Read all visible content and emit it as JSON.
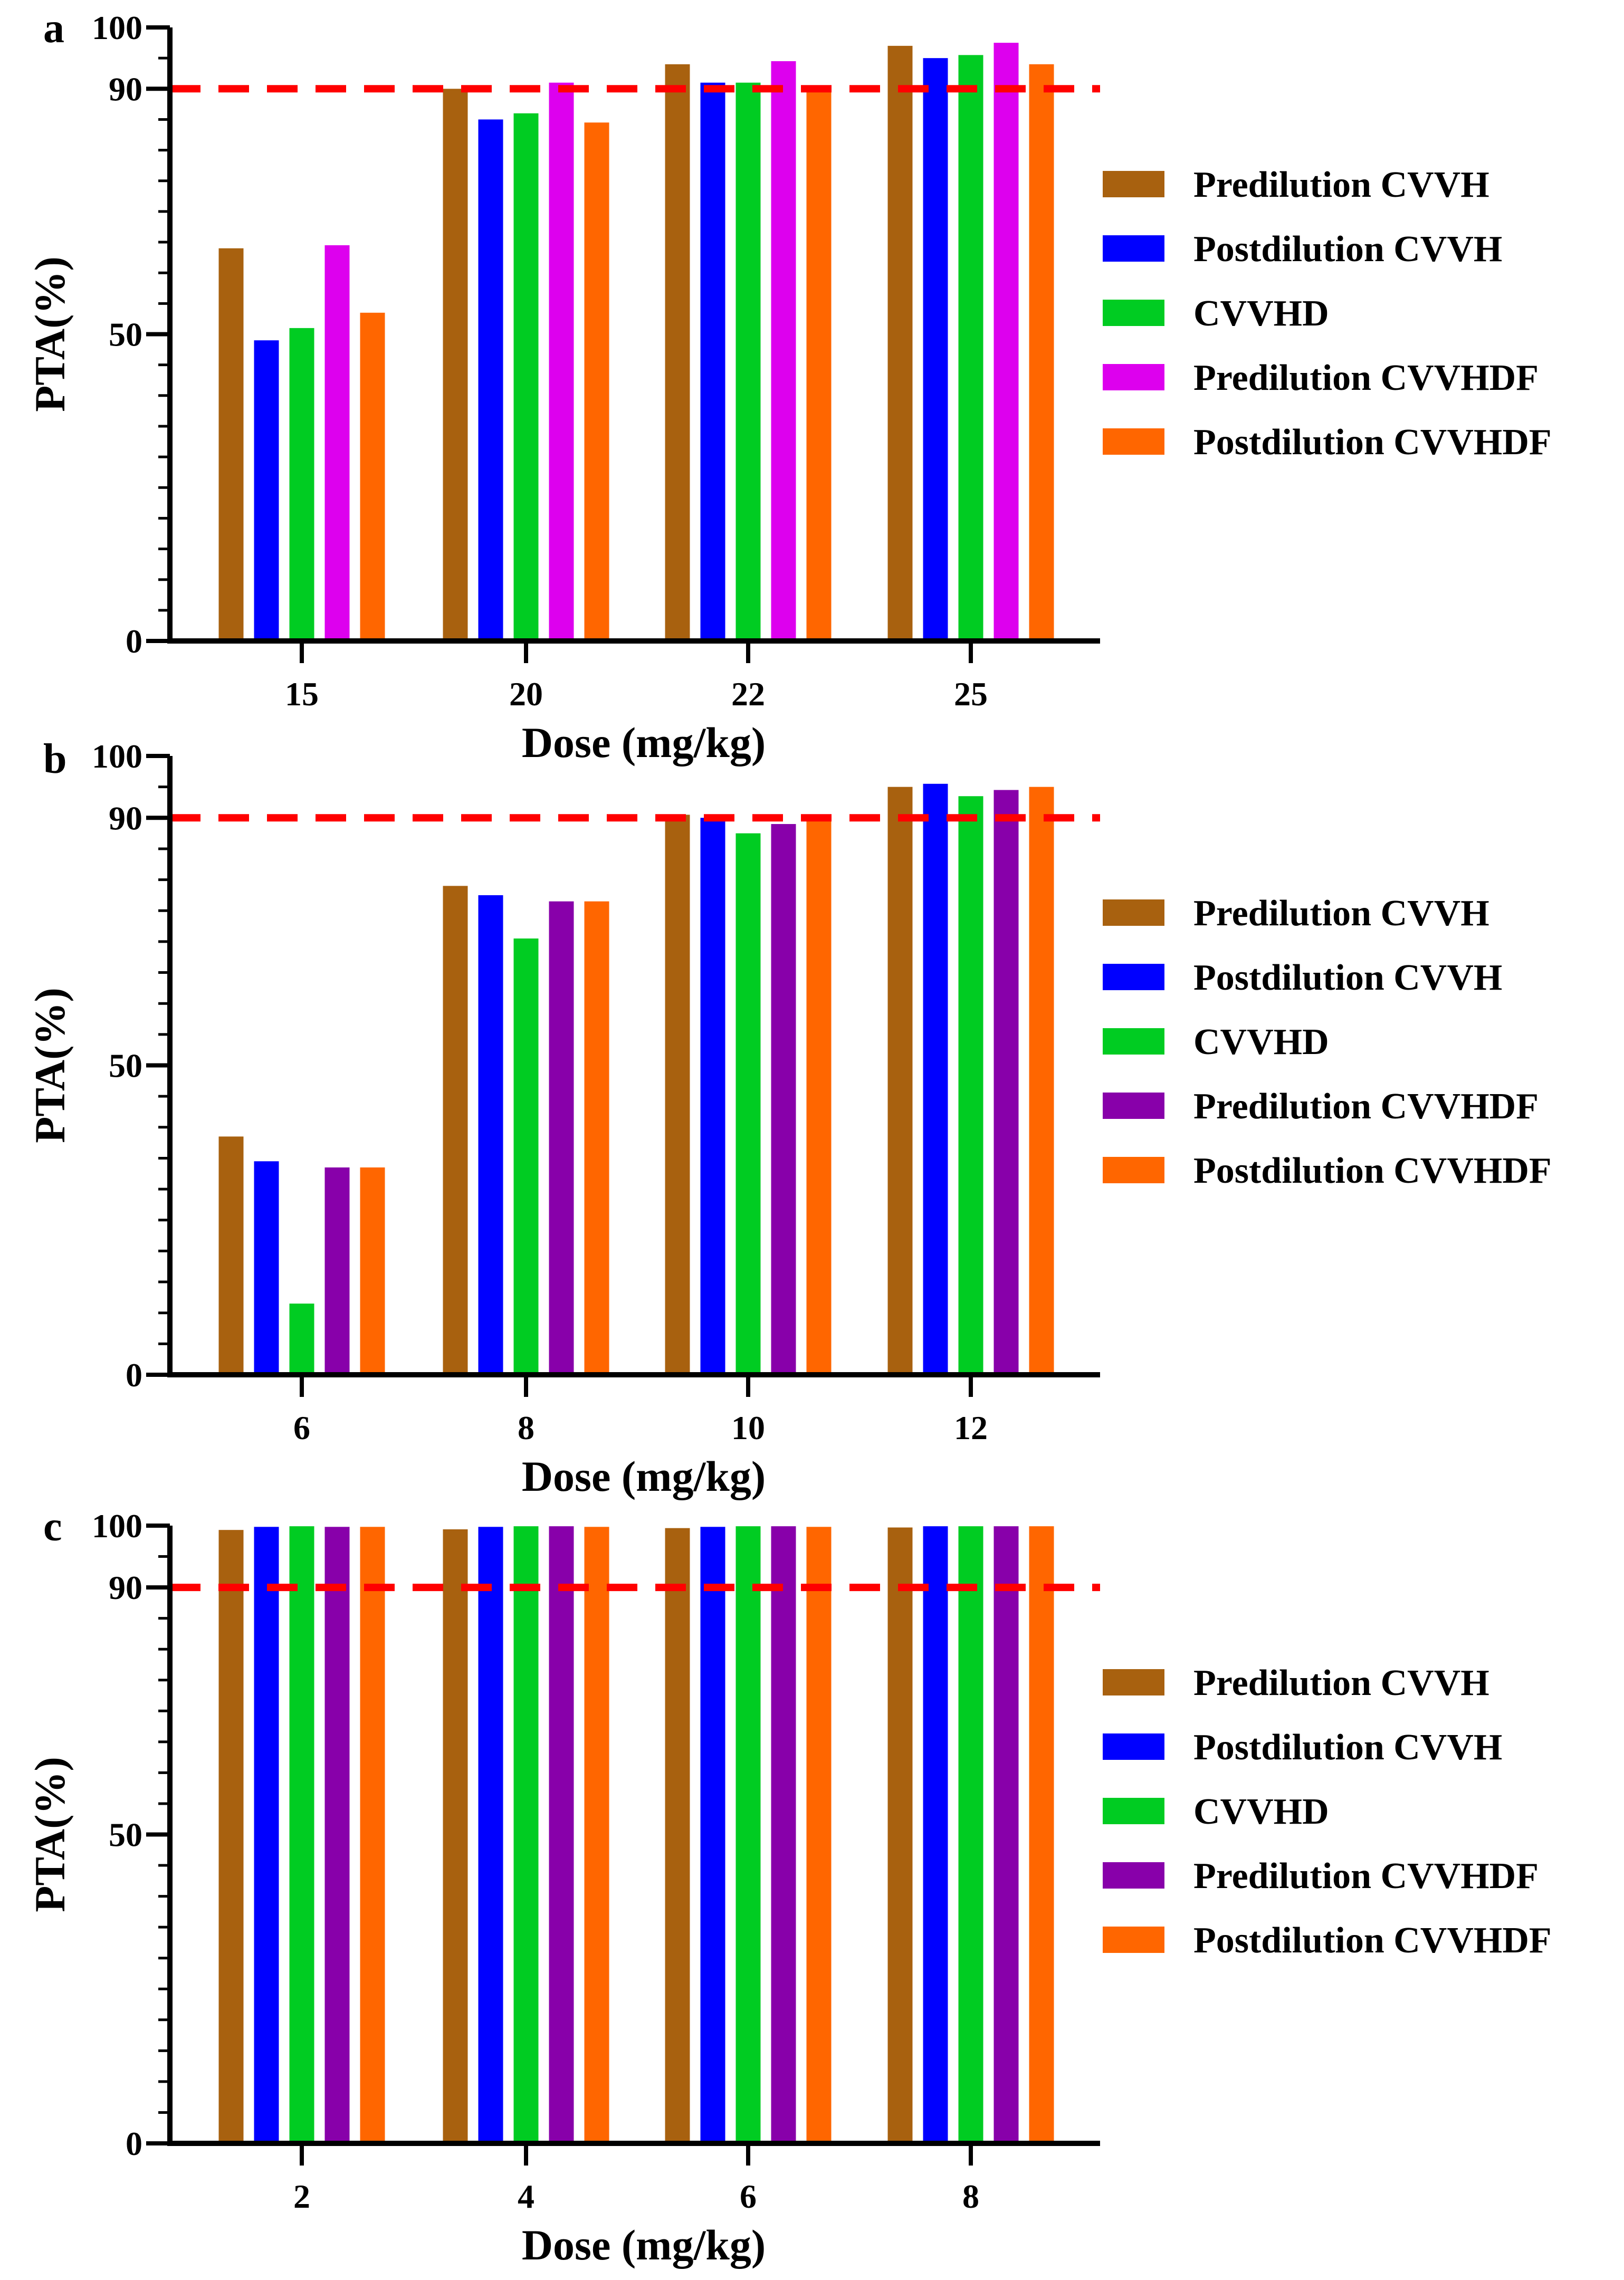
{
  "chart_data": [
    {
      "type": "bar",
      "panel": "a",
      "ylabel": "PTA(%)",
      "xlabel": "Dose (mg/kg)",
      "ylim": [
        0,
        100
      ],
      "yticks": [
        "0",
        "50",
        "90",
        "100"
      ],
      "reference_line": 90,
      "categories": [
        "15",
        "20",
        "22",
        "25"
      ],
      "series": [
        {
          "name": "Predilution CVVH",
          "color": "#A8610F",
          "values": [
            64,
            90,
            94,
            97
          ]
        },
        {
          "name": "Postdilution CVVH",
          "color": "#0000FF",
          "values": [
            49,
            85,
            91,
            95
          ]
        },
        {
          "name": "CVVHD",
          "color": "#00CC22",
          "values": [
            51,
            86,
            91,
            95.5
          ]
        },
        {
          "name": "Predilution CVVHDF",
          "color": "#DD00EE",
          "values": [
            64.5,
            91,
            94.5,
            97.5
          ]
        },
        {
          "name": "Postdilution CVVHDF",
          "color": "#FF6600",
          "values": [
            53.5,
            84.5,
            90,
            94
          ]
        }
      ]
    },
    {
      "type": "bar",
      "panel": "b",
      "ylabel": "PTA(%)",
      "xlabel": "Dose (mg/kg)",
      "ylim": [
        0,
        100
      ],
      "yticks": [
        "0",
        "50",
        "90",
        "100"
      ],
      "reference_line": 90,
      "categories": [
        "6",
        "8",
        "10",
        "12"
      ],
      "series": [
        {
          "name": "Predilution CVVH",
          "color": "#A8610F",
          "values": [
            38.5,
            79,
            90.5,
            95
          ]
        },
        {
          "name": "Postdilution CVVH",
          "color": "#0000FF",
          "values": [
            34.5,
            77.5,
            90,
            95.5
          ]
        },
        {
          "name": "CVVHD",
          "color": "#00CC22",
          "values": [
            11.5,
            70.5,
            87.5,
            93.5
          ]
        },
        {
          "name": "Predilution CVVHDF",
          "color": "#8800AA",
          "values": [
            33.5,
            76.5,
            89,
            94.5
          ]
        },
        {
          "name": "Postdilution CVVHDF",
          "color": "#FF6600",
          "values": [
            33.5,
            76.5,
            90,
            95
          ]
        }
      ]
    },
    {
      "type": "bar",
      "panel": "c",
      "ylabel": "PTA(%)",
      "xlabel": "Dose (mg/kg)",
      "ylim": [
        0,
        100
      ],
      "yticks": [
        "0",
        "50",
        "90",
        "100"
      ],
      "reference_line": 90,
      "categories": [
        "2",
        "4",
        "6",
        "8"
      ],
      "series": [
        {
          "name": "Predilution CVVH",
          "color": "#A8610F",
          "values": [
            99.3,
            99.4,
            99.6,
            99.7
          ]
        },
        {
          "name": "Postdilution CVVH",
          "color": "#0000FF",
          "values": [
            99.8,
            99.8,
            99.8,
            99.9
          ]
        },
        {
          "name": "CVVHD",
          "color": "#00CC22",
          "values": [
            99.9,
            99.9,
            99.9,
            99.9
          ]
        },
        {
          "name": "Predilution CVVHDF",
          "color": "#8800AA",
          "values": [
            99.8,
            99.9,
            99.9,
            99.9
          ]
        },
        {
          "name": "Postdilution CVVHDF",
          "color": "#FF6600",
          "values": [
            99.8,
            99.8,
            99.8,
            99.9
          ]
        }
      ]
    }
  ],
  "reference_line_color": "#FF0000"
}
